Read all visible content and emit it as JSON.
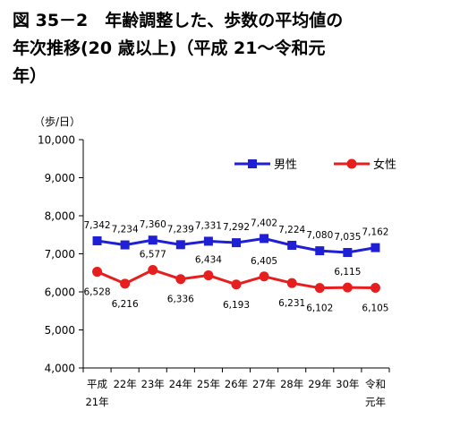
{
  "title": "図 35－2　年齢調整した、歩数の平均値の\n年次推移(20 歳以上)（平成 21～令和元\n年）",
  "chart_data": {
    "type": "line",
    "title": "図 35－2　年齢調整した、歩数の平均値の年次推移(20 歳以上)（平成 21～令和元年）",
    "ylabel": "（歩/日）",
    "xlabel": "",
    "ylim": [
      4000,
      10000
    ],
    "yticks": [
      "4,000",
      "5,000",
      "6,000",
      "7,000",
      "8,000",
      "9,000",
      "10,000"
    ],
    "ytick_values": [
      4000,
      5000,
      6000,
      7000,
      8000,
      9000,
      10000
    ],
    "categories": [
      [
        "平成",
        "21年"
      ],
      [
        "22年"
      ],
      [
        "23年"
      ],
      [
        "24年"
      ],
      [
        "25年"
      ],
      [
        "26年"
      ],
      [
        "27年"
      ],
      [
        "28年"
      ],
      [
        "29年"
      ],
      [
        "30年"
      ],
      [
        "令和",
        "元年"
      ]
    ],
    "grid": false,
    "legend_position": "top-right",
    "series": [
      {
        "name": "男性",
        "color": "#1f1fd6",
        "marker": "square",
        "values": [
          7342,
          7234,
          7360,
          7239,
          7331,
          7292,
          7402,
          7224,
          7080,
          7035,
          7162
        ],
        "labels": [
          "7,342",
          "7,234",
          "7,360",
          "7,239",
          "7,331",
          "7,292",
          "7,402",
          "7,224",
          "7,080",
          "7,035",
          "7,162"
        ]
      },
      {
        "name": "女性",
        "color": "#e61e1e",
        "marker": "circle",
        "values": [
          6528,
          6216,
          6577,
          6336,
          6434,
          6193,
          6405,
          6231,
          6102,
          6115,
          6105
        ],
        "labels": [
          "6,528",
          "6,216",
          "6,577",
          "6,336",
          "6,434",
          "6,193",
          "6,405",
          "6,231",
          "6,102",
          "6,115",
          "6,105"
        ]
      }
    ]
  }
}
